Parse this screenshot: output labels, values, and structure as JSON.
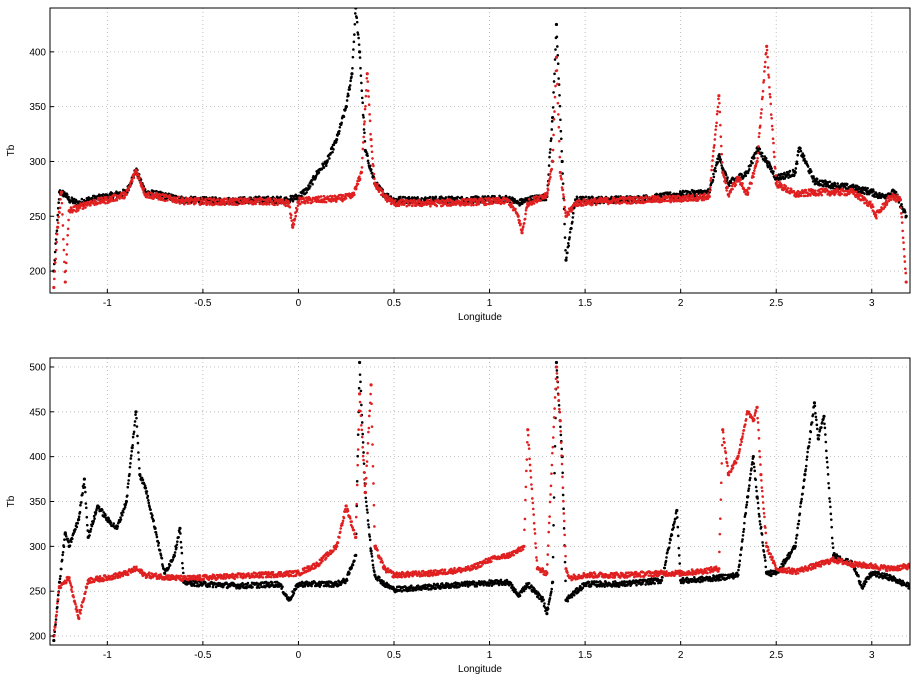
{
  "chart_data": [
    {
      "type": "scatter",
      "xlabel": "Longitude",
      "ylabel": "Tb",
      "xlim": [
        -1.3,
        3.2
      ],
      "ylim": [
        180,
        440
      ],
      "xticks": [
        -1,
        -0.5,
        0,
        0.5,
        1,
        1.5,
        2,
        2.5,
        3
      ],
      "xtick_labels": [
        "-1",
        "-0.5",
        "0",
        "0.5",
        "1",
        "1.5",
        "2",
        "2.5",
        "3"
      ],
      "yticks": [
        200,
        250,
        300,
        350,
        400
      ],
      "ytick_labels": [
        "200",
        "250",
        "300",
        "350",
        "400"
      ],
      "grid": true,
      "series": [
        {
          "color": "#000000",
          "x": [
            -1.28,
            -1.25,
            -1.22,
            -1.2,
            -1.15,
            -1.1,
            -1.0,
            -0.9,
            -0.85,
            -0.8,
            -0.6,
            -0.4,
            -0.2,
            -0.05,
            0.0,
            0.05,
            0.1,
            0.15,
            0.2,
            0.25,
            0.28,
            0.3,
            0.32,
            0.35,
            0.4,
            0.45,
            0.5,
            0.7,
            0.9,
            1.1,
            1.15,
            1.2,
            1.3,
            1.33,
            1.35,
            1.38,
            1.4,
            1.45,
            1.6,
            1.8,
            2.0,
            2.15,
            2.2,
            2.25,
            2.35,
            2.4,
            2.45,
            2.5,
            2.6,
            2.62,
            2.7,
            2.8,
            2.9,
            3.0,
            3.05,
            3.12,
            3.18
          ],
          "y": [
            200,
            272,
            270,
            265,
            262,
            265,
            268,
            272,
            292,
            272,
            265,
            264,
            265,
            265,
            268,
            275,
            290,
            300,
            320,
            350,
            380,
            440,
            400,
            310,
            280,
            270,
            265,
            265,
            265,
            266,
            262,
            265,
            268,
            340,
            425,
            300,
            210,
            265,
            265,
            266,
            270,
            272,
            305,
            280,
            290,
            312,
            300,
            285,
            290,
            312,
            282,
            278,
            276,
            272,
            268,
            272,
            250
          ]
        },
        {
          "color": "#e02020",
          "x": [
            -1.28,
            -1.26,
            -1.24,
            -1.22,
            -1.2,
            -1.15,
            -1.1,
            -1.0,
            -0.9,
            -0.85,
            -0.8,
            -0.6,
            -0.4,
            -0.2,
            -0.05,
            -0.03,
            0.0,
            0.1,
            0.2,
            0.28,
            0.3,
            0.33,
            0.36,
            0.38,
            0.4,
            0.45,
            0.5,
            0.6,
            0.7,
            0.9,
            1.1,
            1.15,
            1.17,
            1.2,
            1.3,
            1.33,
            1.35,
            1.37,
            1.4,
            1.45,
            1.6,
            1.8,
            2.0,
            2.15,
            2.2,
            2.22,
            2.25,
            2.3,
            2.35,
            2.4,
            2.45,
            2.5,
            2.6,
            2.7,
            2.8,
            2.9,
            3.0,
            3.02,
            3.1,
            3.15,
            3.18
          ],
          "y": [
            185,
            240,
            272,
            190,
            255,
            258,
            262,
            265,
            270,
            292,
            270,
            264,
            263,
            264,
            262,
            240,
            264,
            265,
            266,
            268,
            275,
            290,
            380,
            320,
            280,
            268,
            262,
            262,
            262,
            263,
            264,
            250,
            235,
            262,
            270,
            300,
            395,
            290,
            250,
            262,
            264,
            265,
            266,
            268,
            360,
            290,
            270,
            285,
            270,
            300,
            405,
            280,
            270,
            272,
            272,
            272,
            260,
            250,
            268,
            265,
            190
          ]
        }
      ]
    },
    {
      "type": "scatter",
      "xlabel": "Longitude",
      "ylabel": "Tb",
      "xlim": [
        -1.3,
        3.2
      ],
      "ylim": [
        190,
        510
      ],
      "xticks": [
        -1,
        -0.5,
        0,
        0.5,
        1,
        1.5,
        2,
        2.5,
        3
      ],
      "xtick_labels": [
        "-1",
        "-0.5",
        "0",
        "0.5",
        "1",
        "1.5",
        "2",
        "2.5",
        "3"
      ],
      "yticks": [
        200,
        250,
        300,
        350,
        400,
        450,
        500
      ],
      "ytick_labels": [
        "200",
        "250",
        "300",
        "350",
        "400",
        "450",
        "500"
      ],
      "grid": true,
      "series": [
        {
          "color": "#000000",
          "x": [
            -1.28,
            -1.25,
            -1.22,
            -1.2,
            -1.15,
            -1.12,
            -1.1,
            -1.05,
            -1.0,
            -0.95,
            -0.9,
            -0.87,
            -0.85,
            -0.83,
            -0.8,
            -0.75,
            -0.7,
            -0.65,
            -0.62,
            -0.6,
            -0.5,
            -0.3,
            -0.1,
            -0.05,
            0.0,
            0.1,
            0.2,
            0.25,
            0.3,
            0.32,
            0.35,
            0.38,
            0.4,
            0.45,
            0.5,
            0.7,
            0.9,
            1.1,
            1.15,
            1.2,
            1.28,
            1.3,
            1.33,
            1.35,
            1.38,
            1.4,
            1.5,
            1.7,
            1.9,
            1.98,
            2.0,
            2.05,
            2.2,
            2.3,
            2.35,
            2.38,
            2.4,
            2.45,
            2.5,
            2.6,
            2.65,
            2.7,
            2.72,
            2.75,
            2.8,
            2.9,
            2.95,
            3.0,
            3.1,
            3.2
          ],
          "y": [
            195,
            260,
            315,
            300,
            330,
            375,
            310,
            345,
            330,
            320,
            350,
            410,
            450,
            380,
            365,
            320,
            270,
            290,
            320,
            260,
            258,
            256,
            258,
            240,
            258,
            258,
            258,
            262,
            290,
            505,
            360,
            295,
            268,
            258,
            252,
            255,
            258,
            260,
            245,
            258,
            240,
            225,
            260,
            505,
            400,
            240,
            258,
            258,
            262,
            340,
            262,
            262,
            265,
            268,
            355,
            400,
            355,
            270,
            270,
            300,
            380,
            460,
            420,
            445,
            290,
            280,
            255,
            270,
            265,
            255
          ]
        },
        {
          "color": "#e02020",
          "x": [
            -1.28,
            -1.25,
            -1.2,
            -1.15,
            -1.1,
            -1.0,
            -0.9,
            -0.85,
            -0.8,
            -0.6,
            -0.4,
            -0.2,
            0.0,
            0.1,
            0.2,
            0.25,
            0.3,
            0.32,
            0.35,
            0.38,
            0.4,
            0.45,
            0.5,
            0.7,
            0.9,
            1.0,
            1.1,
            1.15,
            1.18,
            1.2,
            1.25,
            1.3,
            1.35,
            1.37,
            1.4,
            1.42,
            1.5,
            1.7,
            1.9,
            2.0,
            2.1,
            2.2,
            2.22,
            2.25,
            2.3,
            2.35,
            2.38,
            2.4,
            2.42,
            2.45,
            2.5,
            2.6,
            2.7,
            2.8,
            2.9,
            3.0,
            3.1,
            3.2
          ],
          "y": [
            200,
            255,
            265,
            220,
            262,
            265,
            270,
            275,
            268,
            264,
            266,
            268,
            270,
            280,
            300,
            345,
            310,
            470,
            360,
            480,
            300,
            275,
            268,
            270,
            275,
            285,
            290,
            295,
            300,
            430,
            275,
            270,
            500,
            440,
            275,
            265,
            268,
            268,
            270,
            270,
            272,
            275,
            430,
            380,
            400,
            450,
            440,
            455,
            380,
            300,
            275,
            272,
            278,
            285,
            280,
            278,
            275,
            278
          ]
        }
      ]
    }
  ]
}
